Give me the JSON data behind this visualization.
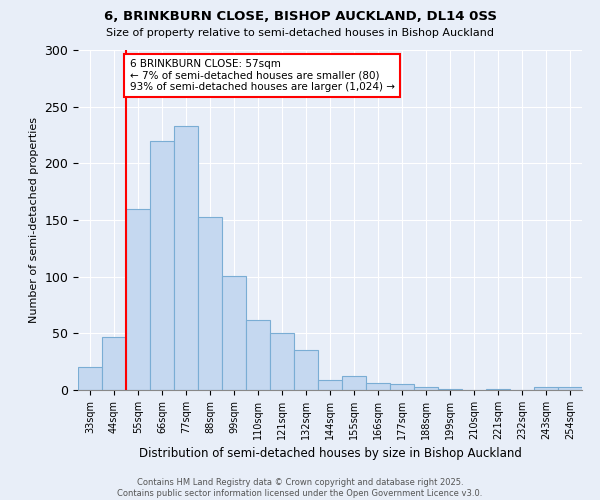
{
  "title1": "6, BRINKBURN CLOSE, BISHOP AUCKLAND, DL14 0SS",
  "title2": "Size of property relative to semi-detached houses in Bishop Auckland",
  "xlabel": "Distribution of semi-detached houses by size in Bishop Auckland",
  "ylabel": "Number of semi-detached properties",
  "bins": [
    "33sqm",
    "44sqm",
    "55sqm",
    "66sqm",
    "77sqm",
    "88sqm",
    "99sqm",
    "110sqm",
    "121sqm",
    "132sqm",
    "144sqm",
    "155sqm",
    "166sqm",
    "177sqm",
    "188sqm",
    "199sqm",
    "210sqm",
    "221sqm",
    "232sqm",
    "243sqm",
    "254sqm"
  ],
  "values": [
    20,
    47,
    160,
    220,
    233,
    153,
    101,
    62,
    50,
    35,
    9,
    12,
    6,
    5,
    3,
    1,
    0,
    1,
    0,
    3,
    3
  ],
  "bar_color": "#c5d8f0",
  "bar_edge_color": "#7aadd4",
  "vline_x_index": 2,
  "vline_color": "red",
  "annotation_text": "6 BRINKBURN CLOSE: 57sqm\n← 7% of semi-detached houses are smaller (80)\n93% of semi-detached houses are larger (1,024) →",
  "annotation_box_color": "white",
  "annotation_box_edge": "red",
  "footer1": "Contains HM Land Registry data © Crown copyright and database right 2025.",
  "footer2": "Contains public sector information licensed under the Open Government Licence v3.0.",
  "bg_color": "#e8eef8",
  "ylim": [
    0,
    300
  ],
  "yticks": [
    0,
    50,
    100,
    150,
    200,
    250,
    300
  ]
}
